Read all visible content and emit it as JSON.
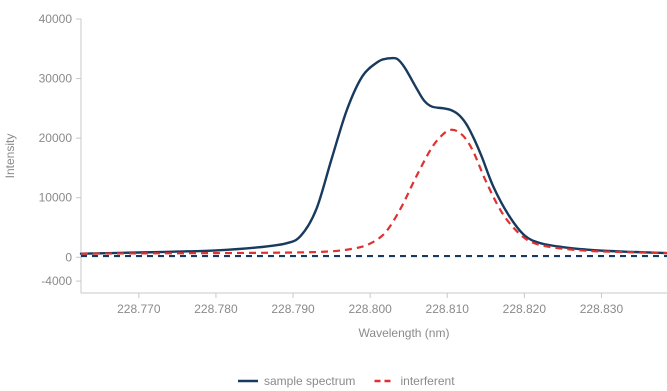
{
  "chart_data": {
    "type": "line",
    "xlabel": "Wavelength (nm)",
    "ylabel": "Intensity",
    "xlim": [
      228.7625,
      228.8385
    ],
    "ylim": [
      -6000,
      40000
    ],
    "x_ticks": [
      "228.770",
      "228.780",
      "228.790",
      "228.800",
      "228.810",
      "228.820",
      "228.830"
    ],
    "x_tick_values": [
      228.77,
      228.78,
      228.79,
      228.8,
      228.81,
      228.82,
      228.83
    ],
    "y_ticks": [
      "40000",
      "30000",
      "20000",
      "10000",
      "0",
      "-4000"
    ],
    "y_tick_values": [
      40000,
      30000,
      20000,
      10000,
      0,
      -4000
    ],
    "grid": false,
    "legend_position": "bottom-center",
    "series": [
      {
        "name": "sample spectrum",
        "color": "#173a5e",
        "style": "solid",
        "x": [
          228.7625,
          228.77,
          228.775,
          228.78,
          228.785,
          228.789,
          228.791,
          228.793,
          228.795,
          228.797,
          228.799,
          228.801,
          228.802,
          228.8025,
          228.8035,
          228.8045,
          228.806,
          228.807,
          228.808,
          228.8095,
          228.8105,
          228.8115,
          228.8125,
          228.8135,
          228.8145,
          228.816,
          228.818,
          228.82,
          228.822,
          228.825,
          228.828,
          228.831,
          228.834,
          228.8385
        ],
        "y": [
          600,
          800,
          950,
          1150,
          1600,
          2300,
          3600,
          8000,
          16500,
          24800,
          30400,
          32800,
          33300,
          33400,
          33300,
          31800,
          28400,
          26300,
          25300,
          25000,
          24700,
          23900,
          22300,
          19800,
          16800,
          11800,
          7000,
          3700,
          2400,
          1700,
          1300,
          1050,
          900,
          700
        ]
      },
      {
        "name": "interferent",
        "color": "#e03030",
        "style": "dashed",
        "x": [
          228.7625,
          228.77,
          228.78,
          228.79,
          228.795,
          228.798,
          228.8,
          228.802,
          228.804,
          228.806,
          228.808,
          228.8095,
          228.8105,
          228.8115,
          228.8125,
          228.8135,
          228.815,
          228.817,
          228.819,
          228.821,
          228.824,
          228.828,
          228.832,
          228.8385
        ],
        "y": [
          600,
          650,
          700,
          800,
          1000,
          1500,
          2300,
          4200,
          8300,
          13600,
          18400,
          20700,
          21400,
          21000,
          19700,
          17400,
          12800,
          7700,
          4400,
          2500,
          1600,
          1100,
          900,
          700
        ]
      },
      {
        "name": "",
        "color": "#173a5e",
        "style": "dashed",
        "x": [
          228.7625,
          228.8385
        ],
        "y": [
          200,
          200
        ]
      }
    ]
  }
}
